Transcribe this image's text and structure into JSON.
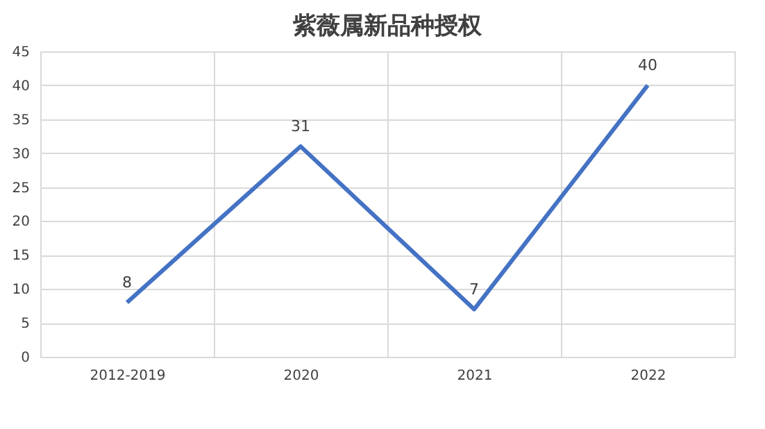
{
  "chart_data": {
    "type": "line",
    "title": "紫薇属新品种授权",
    "categories": [
      "2012-2019",
      "2020",
      "2021",
      "2022"
    ],
    "series": [
      {
        "color": "#4472c4",
        "values": [
          8,
          31,
          7,
          40
        ]
      }
    ],
    "ylim": [
      0,
      45
    ],
    "yticks": [
      0,
      5,
      10,
      15,
      20,
      25,
      30,
      35,
      40,
      45
    ],
    "grid": true,
    "data_labels": true,
    "legend": false,
    "marker": "none",
    "line_style": "solid"
  }
}
